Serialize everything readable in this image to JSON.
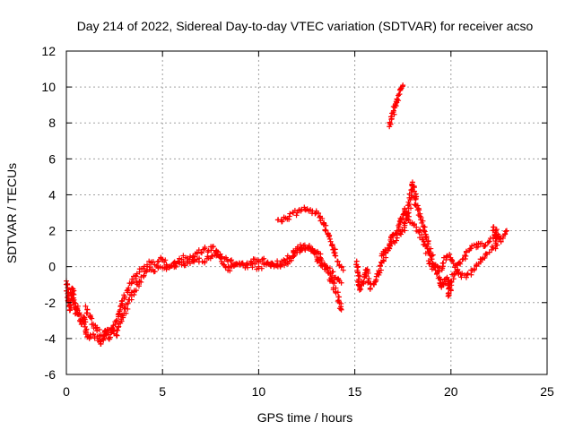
{
  "chart_data": {
    "type": "scatter",
    "title": "Day 214 of 2022, Sidereal Day-to-day VTEC variation (SDTVAR) for receiver acso",
    "xlabel": "GPS time / hours",
    "ylabel": "SDTVAR / TECUs",
    "xlim": [
      0,
      25
    ],
    "ylim": [
      -6,
      12
    ],
    "xticks": [
      0,
      5,
      10,
      15,
      20,
      25
    ],
    "yticks": [
      -6,
      -4,
      -2,
      0,
      2,
      4,
      6,
      8,
      10,
      12
    ],
    "grid": true,
    "marker": "+",
    "series": [
      {
        "name": "main",
        "color": "#ff0000",
        "points": [
          [
            0.0,
            -0.8
          ],
          [
            0.1,
            -1.6
          ],
          [
            0.2,
            -2.4
          ],
          [
            0.3,
            -1.2
          ],
          [
            0.4,
            -2.0
          ],
          [
            0.5,
            -2.6
          ],
          [
            0.6,
            -2.2
          ],
          [
            0.7,
            -3.0
          ],
          [
            0.8,
            -3.2
          ],
          [
            0.9,
            -2.8
          ],
          [
            1.0,
            -3.6
          ],
          [
            1.1,
            -3.9
          ],
          [
            1.2,
            -4.0
          ],
          [
            1.4,
            -3.8
          ],
          [
            1.6,
            -3.9
          ],
          [
            1.8,
            -4.3
          ],
          [
            2.0,
            -3.6
          ],
          [
            2.2,
            -4.0
          ],
          [
            2.4,
            -3.4
          ],
          [
            2.6,
            -3.0
          ],
          [
            2.8,
            -2.4
          ],
          [
            3.0,
            -1.8
          ],
          [
            3.2,
            -1.3
          ],
          [
            3.4,
            -0.9
          ],
          [
            3.6,
            -0.5
          ],
          [
            3.8,
            -0.3
          ],
          [
            4.0,
            -0.1
          ],
          [
            4.2,
            0.1
          ],
          [
            4.4,
            0.2
          ],
          [
            4.6,
            0.1
          ],
          [
            4.8,
            0.3
          ],
          [
            5.0,
            0.4
          ],
          [
            5.2,
            0.1
          ],
          [
            5.4,
            0.0
          ],
          [
            5.6,
            0.2
          ],
          [
            5.8,
            0.3
          ],
          [
            6.0,
            0.4
          ],
          [
            6.2,
            0.5
          ],
          [
            6.4,
            0.4
          ],
          [
            6.6,
            0.6
          ],
          [
            6.8,
            0.8
          ],
          [
            7.0,
            0.8
          ],
          [
            7.2,
            1.0
          ],
          [
            7.4,
            0.9
          ],
          [
            7.6,
            1.1
          ],
          [
            7.8,
            0.9
          ],
          [
            8.0,
            0.5
          ],
          [
            8.2,
            0.1
          ],
          [
            8.4,
            -0.2
          ],
          [
            8.6,
            0.0
          ],
          [
            8.8,
            0.1
          ],
          [
            9.0,
            0.2
          ],
          [
            9.2,
            0.1
          ],
          [
            9.4,
            0.2
          ],
          [
            9.6,
            0.3
          ],
          [
            9.8,
            0.4
          ],
          [
            10.0,
            0.3
          ],
          [
            10.2,
            0.4
          ],
          [
            10.4,
            0.2
          ],
          [
            10.6,
            0.1
          ],
          [
            10.8,
            0.0
          ],
          [
            11.0,
            0.0
          ],
          [
            11.2,
            0.1
          ],
          [
            11.4,
            0.2
          ],
          [
            11.6,
            0.3
          ],
          [
            11.8,
            0.6
          ],
          [
            12.0,
            0.8
          ],
          [
            12.2,
            0.9
          ],
          [
            12.4,
            1.0
          ],
          [
            12.6,
            1.1
          ],
          [
            12.8,
            1.0
          ],
          [
            13.0,
            0.8
          ],
          [
            13.2,
            0.5
          ],
          [
            13.4,
            0.1
          ],
          [
            13.6,
            -0.3
          ],
          [
            13.8,
            -0.8
          ],
          [
            14.0,
            -1.4
          ],
          [
            14.2,
            -2.0
          ],
          [
            14.3,
            -2.4
          ]
        ]
      },
      {
        "name": "upper-branch",
        "color": "#ff0000",
        "points": [
          [
            1.0,
            -2.2
          ],
          [
            1.4,
            -3.2
          ],
          [
            1.8,
            -3.8
          ],
          [
            2.2,
            -3.5
          ],
          [
            2.6,
            -3.8
          ],
          [
            3.0,
            -2.6
          ],
          [
            3.4,
            -1.6
          ],
          [
            3.8,
            -0.8
          ],
          [
            4.2,
            -0.2
          ],
          [
            6.0,
            0.1
          ],
          [
            6.8,
            0.4
          ],
          [
            7.2,
            0.3
          ],
          [
            7.6,
            0.6
          ],
          [
            8.0,
            0.7
          ],
          [
            8.4,
            0.3
          ],
          [
            9.0,
            0.1
          ],
          [
            10.0,
            0.0
          ],
          [
            10.4,
            0.1
          ],
          [
            11.2,
            0.3
          ],
          [
            11.6,
            0.5
          ],
          [
            12.0,
            1.0
          ],
          [
            12.4,
            1.2
          ],
          [
            12.8,
            0.9
          ],
          [
            13.2,
            0.2
          ],
          [
            13.6,
            -0.1
          ],
          [
            14.0,
            -0.6
          ],
          [
            14.3,
            -0.9
          ]
        ]
      },
      {
        "name": "arc",
        "color": "#ff0000",
        "points": [
          [
            11.0,
            2.6
          ],
          [
            11.2,
            2.5
          ],
          [
            11.4,
            2.7
          ],
          [
            11.6,
            2.8
          ],
          [
            11.8,
            3.0
          ],
          [
            12.0,
            3.0
          ],
          [
            12.2,
            3.1
          ],
          [
            12.4,
            3.2
          ],
          [
            12.6,
            3.1
          ],
          [
            12.8,
            3.1
          ],
          [
            13.0,
            3.0
          ],
          [
            13.2,
            2.8
          ],
          [
            13.4,
            2.4
          ],
          [
            13.6,
            1.8
          ],
          [
            13.8,
            1.2
          ],
          [
            14.0,
            0.6
          ],
          [
            14.2,
            0.1
          ],
          [
            14.4,
            -0.2
          ]
        ]
      },
      {
        "name": "second-segment",
        "color": "#ff0000",
        "points": [
          [
            15.1,
            0.3
          ],
          [
            15.15,
            -0.3
          ],
          [
            15.2,
            -0.5
          ],
          [
            15.25,
            -1.3
          ],
          [
            15.5,
            -0.6
          ],
          [
            15.6,
            -0.2
          ],
          [
            15.7,
            -0.8
          ],
          [
            15.8,
            -1.2
          ],
          [
            16.0,
            -1.0
          ],
          [
            16.2,
            -0.4
          ],
          [
            16.4,
            0.2
          ],
          [
            16.6,
            0.8
          ],
          [
            16.8,
            1.2
          ],
          [
            17.0,
            1.4
          ],
          [
            17.2,
            1.6
          ],
          [
            17.4,
            1.8
          ],
          [
            17.6,
            2.3
          ],
          [
            17.8,
            3.0
          ],
          [
            18.0,
            4.7
          ],
          [
            18.1,
            4.2
          ],
          [
            18.2,
            3.4
          ],
          [
            18.4,
            2.8
          ],
          [
            18.6,
            2.2
          ],
          [
            18.8,
            1.4
          ],
          [
            19.0,
            0.6
          ],
          [
            19.2,
            -0.2
          ],
          [
            19.4,
            -0.6
          ],
          [
            19.5,
            -1.1
          ],
          [
            19.6,
            -1.0
          ],
          [
            19.8,
            -0.6
          ],
          [
            19.9,
            -1.6
          ],
          [
            20.0,
            -0.8
          ],
          [
            20.2,
            -0.4
          ],
          [
            20.4,
            0.2
          ],
          [
            20.6,
            0.4
          ],
          [
            20.8,
            0.8
          ],
          [
            21.0,
            1.0
          ],
          [
            21.2,
            1.2
          ],
          [
            21.4,
            1.1
          ],
          [
            21.6,
            1.3
          ],
          [
            21.8,
            1.2
          ],
          [
            22.0,
            1.4
          ],
          [
            22.2,
            1.6
          ],
          [
            22.4,
            1.7
          ],
          [
            22.6,
            1.6
          ],
          [
            22.8,
            1.8
          ],
          [
            22.9,
            2.0
          ]
        ]
      },
      {
        "name": "second-lower",
        "color": "#ff0000",
        "points": [
          [
            16.4,
            0.6
          ],
          [
            16.8,
            1.0
          ],
          [
            17.0,
            1.8
          ],
          [
            17.2,
            2.0
          ],
          [
            17.4,
            2.6
          ],
          [
            17.6,
            3.2
          ],
          [
            17.8,
            2.6
          ],
          [
            18.2,
            2.2
          ],
          [
            18.6,
            1.4
          ],
          [
            19.0,
            0.0
          ],
          [
            19.4,
            -0.2
          ],
          [
            19.6,
            0.2
          ],
          [
            19.8,
            0.6
          ],
          [
            20.0,
            0.4
          ],
          [
            20.4,
            -0.4
          ],
          [
            20.8,
            -0.6
          ],
          [
            21.2,
            -0.2
          ],
          [
            21.6,
            0.4
          ],
          [
            22.0,
            0.8
          ],
          [
            22.4,
            1.2
          ],
          [
            22.2,
            2.2
          ],
          [
            22.6,
            1.4
          ]
        ]
      },
      {
        "name": "outlier-segment",
        "color": "#ff0000",
        "points": [
          [
            16.8,
            7.8
          ],
          [
            16.9,
            8.2
          ],
          [
            17.0,
            8.6
          ],
          [
            17.1,
            9.0
          ],
          [
            17.2,
            9.3
          ],
          [
            17.3,
            9.6
          ],
          [
            17.4,
            9.9
          ],
          [
            17.5,
            10.1
          ]
        ]
      }
    ]
  }
}
